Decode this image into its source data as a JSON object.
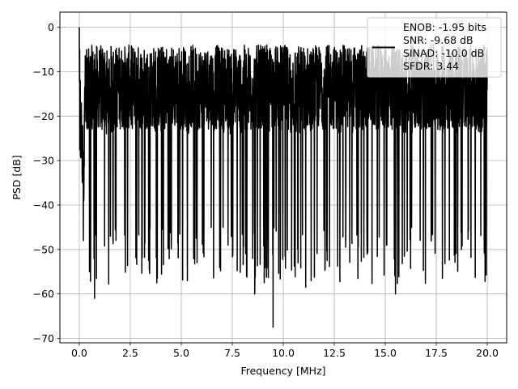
{
  "chart_data": {
    "type": "line",
    "title": "",
    "xlabel": "Frequency [MHz]",
    "ylabel": "PSD [dB]",
    "xlim": [
      -0.95,
      20.95
    ],
    "ylim": [
      -71,
      3.4
    ],
    "grid": true,
    "x_ticks": [
      0,
      2.5,
      5,
      7.5,
      10,
      12.5,
      15,
      17.5,
      20
    ],
    "x_tick_labels": [
      "0.0",
      "2.5",
      "5.0",
      "7.5",
      "10.0",
      "12.5",
      "15.0",
      "17.5",
      "20.0"
    ],
    "y_ticks": [
      0,
      -10,
      -20,
      -30,
      -40,
      -50,
      -60,
      -70
    ],
    "y_tick_labels": [
      "0",
      "−10",
      "−20",
      "−30",
      "−40",
      "−50",
      "−60",
      "−70"
    ],
    "legend_position": "top-right",
    "legend_lines": [
      "ENOB: -1.95 bits",
      "SNR: -9.68 dB",
      "SINAD: -10.0 dB",
      "SFDR: 3.44"
    ],
    "series": [
      {
        "color": "#000000",
        "x_start": 0,
        "x_end": 20,
        "notable_points": [
          {
            "x": 0.0,
            "y": 0
          },
          {
            "x": 0.02,
            "y": -5
          },
          {
            "x": 0.05,
            "y": -12
          },
          {
            "x": 0.1,
            "y": -17
          },
          {
            "x": 0.2,
            "y": -48
          },
          {
            "x": 0.5,
            "y": -55
          },
          {
            "x": 0.75,
            "y": -61
          },
          {
            "x": 2.8,
            "y": -52
          },
          {
            "x": 3.8,
            "y": -57.5
          },
          {
            "x": 5.3,
            "y": -57
          },
          {
            "x": 8.6,
            "y": -60
          },
          {
            "x": 9.0,
            "y": -22
          },
          {
            "x": 9.5,
            "y": -67.5
          },
          {
            "x": 10.0,
            "y": -17.5
          },
          {
            "x": 11.1,
            "y": -58.5
          },
          {
            "x": 15.5,
            "y": -60
          },
          {
            "x": 17.8,
            "y": -56.5
          }
        ],
        "noise_band": {
          "upper": -21,
          "lower": -42,
          "spike_depth": -55
        }
      }
    ]
  }
}
